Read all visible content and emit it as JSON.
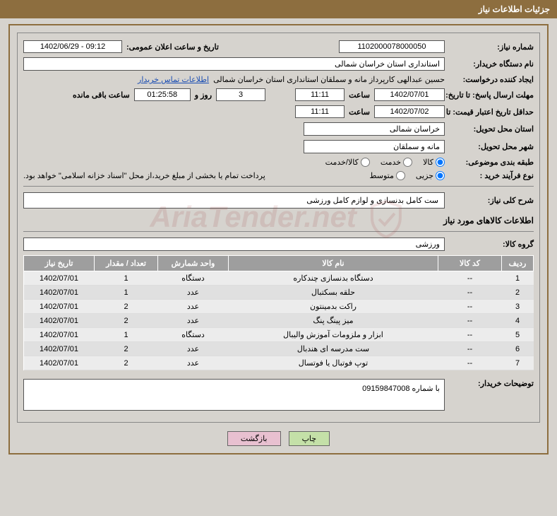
{
  "header": {
    "title": "جزئیات اطلاعات نیاز"
  },
  "fields": {
    "need_no_label": "شماره نیاز:",
    "need_no": "1102000078000050",
    "announce_label": "تاریخ و ساعت اعلان عمومی:",
    "announce": "09:12 - 1402/06/29",
    "buyer_org_label": "نام دستگاه خریدار:",
    "buyer_org": "استانداری استان خراسان شمالی",
    "requester_label": "ایجاد کننده درخواست:",
    "requester": "حسین  عبدالهی  کارپرداز مانه و سملقان استانداری استان خراسان شمالی",
    "contact_link": "اطلاعات تماس خریدار",
    "deadline_label": "مهلت ارسال پاسخ: تا تاریخ:",
    "deadline_date": "1402/07/01",
    "time_label": "ساعت",
    "deadline_time": "11:11",
    "days_label": "روز و",
    "days": "3",
    "remain_label": "ساعت باقی مانده",
    "remain": "01:25:58",
    "validity_label": "حداقل تاریخ اعتبار قیمت: تا تاریخ:",
    "validity_date": "1402/07/02",
    "validity_time": "11:11",
    "province_label": "استان محل تحویل:",
    "province": "خراسان شمالی",
    "city_label": "شهر محل تحویل:",
    "city": "مانه و سملقان",
    "category_label": "طبقه بندی موضوعی:",
    "cat_goods": "کالا",
    "cat_service": "خدمت",
    "cat_both": "کالا/خدمت",
    "process_label": "نوع فرآیند خرید :",
    "proc_partial": "جزیی",
    "proc_medium": "متوسط",
    "process_note": "پرداخت تمام یا بخشی از مبلغ خرید،از محل \"اسناد خزانه اسلامی\" خواهد بود.",
    "overview_label": "شرح کلی نیاز:",
    "overview": "ست کامل بدنسازی و لوازم کامل ورزشی",
    "goods_section": "اطلاعات کالاهای مورد نیاز",
    "group_label": "گروه کالا:",
    "group": "ورزشی",
    "notes_label": "توضیحات خریدار:",
    "notes": "با شماره 09159847008"
  },
  "table": {
    "headers": {
      "row": "ردیف",
      "code": "کد کالا",
      "name": "نام کالا",
      "unit": "واحد شمارش",
      "qty": "تعداد / مقدار",
      "date": "تاریخ نیاز"
    },
    "rows": [
      {
        "n": "1",
        "code": "--",
        "name": "دستگاه بدنسازی چندکاره",
        "unit": "دستگاه",
        "qty": "1",
        "date": "1402/07/01"
      },
      {
        "n": "2",
        "code": "--",
        "name": "حلقه بسکتبال",
        "unit": "عدد",
        "qty": "1",
        "date": "1402/07/01"
      },
      {
        "n": "3",
        "code": "--",
        "name": "راکت بدمینتون",
        "unit": "عدد",
        "qty": "2",
        "date": "1402/07/01"
      },
      {
        "n": "4",
        "code": "--",
        "name": "میز پینگ پنگ",
        "unit": "عدد",
        "qty": "2",
        "date": "1402/07/01"
      },
      {
        "n": "5",
        "code": "--",
        "name": "ابزار و ملزومات آموزش والیبال",
        "unit": "دستگاه",
        "qty": "1",
        "date": "1402/07/01"
      },
      {
        "n": "6",
        "code": "--",
        "name": "ست مدرسه ای هندبال",
        "unit": "عدد",
        "qty": "2",
        "date": "1402/07/01"
      },
      {
        "n": "7",
        "code": "--",
        "name": "توپ فوتبال یا فوتسال",
        "unit": "عدد",
        "qty": "2",
        "date": "1402/07/01"
      }
    ]
  },
  "buttons": {
    "print": "چاپ",
    "back": "بازگشت"
  },
  "watermark": "AriaTender.net",
  "colors": {
    "header_bg": "#8d6e3f",
    "page_bg": "#d6d3ce",
    "th_bg": "#9e9e9e",
    "link": "#1a4db3"
  }
}
